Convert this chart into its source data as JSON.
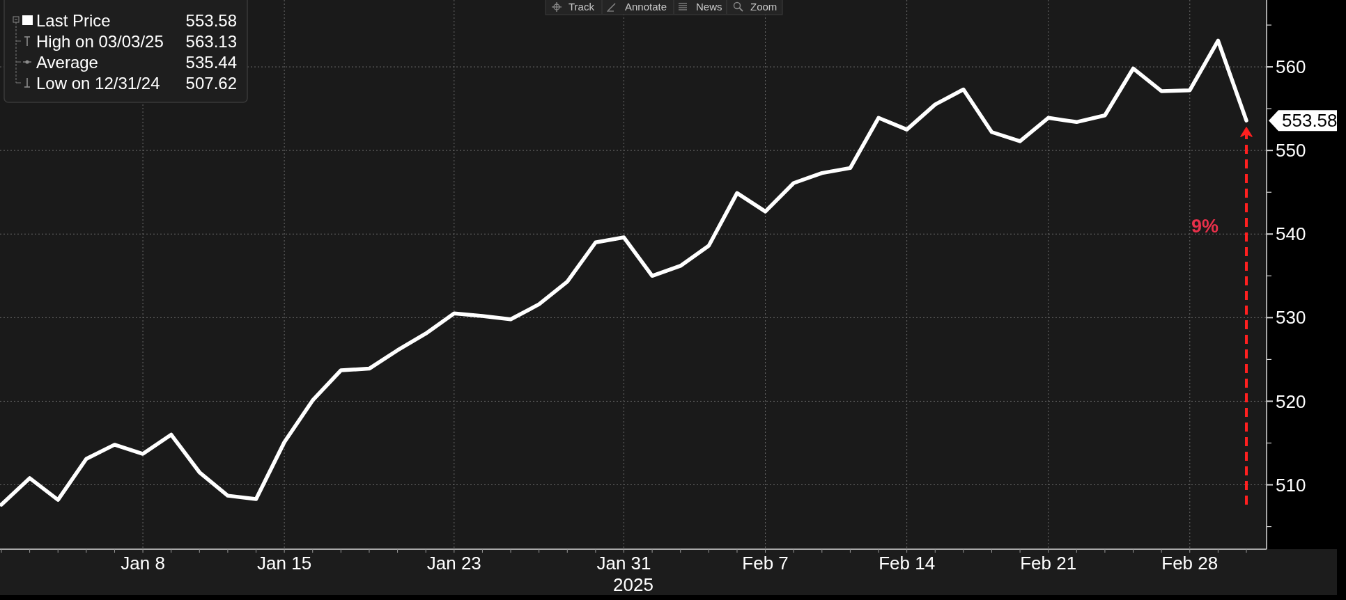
{
  "chart_data": {
    "type": "line",
    "categories": [
      null,
      null,
      null,
      null,
      null,
      "Jan 8",
      null,
      null,
      null,
      null,
      "Jan 15",
      null,
      null,
      null,
      null,
      null,
      "Jan 23",
      null,
      null,
      null,
      null,
      null,
      "Jan 31",
      null,
      null,
      null,
      null,
      "Feb 7",
      null,
      null,
      null,
      null,
      "Feb 14",
      null,
      null,
      null,
      null,
      "Feb 21",
      null,
      null,
      null,
      null,
      "Feb 28",
      null,
      null
    ],
    "xlabel": "2025",
    "series": [
      {
        "name": "Last Price",
        "color": "#ffffff",
        "values": [
          507.62,
          510.8,
          508.2,
          513.1,
          514.8,
          513.7,
          516.0,
          511.5,
          508.7,
          508.3,
          515.1,
          520.1,
          523.7,
          523.9,
          526.1,
          528.1,
          530.5,
          530.2,
          529.8,
          531.6,
          534.3,
          539.0,
          539.6,
          535.0,
          536.2,
          538.6,
          544.9,
          542.7,
          546.1,
          547.3,
          547.9,
          553.9,
          552.5,
          555.5,
          557.3,
          552.2,
          551.1,
          553.9,
          553.4,
          554.2,
          559.8,
          557.1,
          557.2,
          563.13,
          553.58
        ]
      }
    ],
    "ylim": [
      502.3,
      568.0
    ],
    "yticks": [
      {
        "value": 505,
        "label": null
      },
      510,
      {
        "value": 515,
        "label": null
      },
      520,
      {
        "value": 525,
        "label": null
      },
      530,
      {
        "value": 535,
        "label": null
      },
      540,
      {
        "value": 545,
        "label": null
      },
      550,
      {
        "value": 555,
        "label": null
      },
      560,
      {
        "value": 565,
        "label": null
      }
    ],
    "grid": true,
    "legend": "top left",
    "annotations": [
      "553.58",
      "High on 03/03/25",
      "563.13",
      "Average",
      "535.44",
      "Low on 12/31/24",
      "507.62",
      "553.58",
      "9%",
      "Track",
      "Annotate",
      "News",
      "Zoom"
    ]
  }
}
